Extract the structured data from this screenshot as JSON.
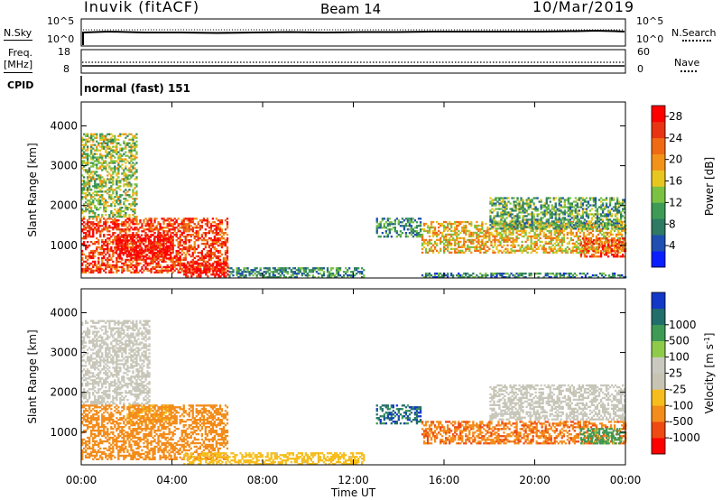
{
  "header": {
    "station": "Inuvik (fitACF)",
    "beam": "Beam 14",
    "date": "10/Mar/2019"
  },
  "top_panels": {
    "nsky_label": "N.Sky",
    "nsky_ticks": [
      "10^5",
      "10^0"
    ],
    "nsearch_label": "N.Search",
    "nsearch_ticks": [
      "10^5",
      "10^0"
    ],
    "freq_label": "Freq.",
    "freq_unit": "[MHz]",
    "freq_ticks": [
      "18",
      "8"
    ],
    "nave_label": "Nave",
    "nave_ticks": [
      "60",
      "0"
    ],
    "cpid_label": "CPID",
    "cpid_value": "normal (fast) 151"
  },
  "colors": {
    "power": [
      "#0a1fff",
      "#1f4fb0",
      "#2e7a63",
      "#3e9a55",
      "#7bc243",
      "#e8c620",
      "#f29218",
      "#f06a14",
      "#e83412",
      "#ff0000"
    ],
    "velocity": [
      "#ff0000",
      "#ef4a12",
      "#f38c1a",
      "#f6bd1c",
      "#c7c4b4",
      "#c9c9c0",
      "#8ecb4a",
      "#3e9a55",
      "#226e6a",
      "#1238c8"
    ]
  },
  "chart_data": [
    {
      "type": "heatmap",
      "name": "power",
      "x_ticks": [
        "00:00",
        "04:00",
        "08:00",
        "12:00",
        "16:00",
        "20:00",
        "00:00"
      ],
      "xlim_hours": [
        0,
        24
      ],
      "ylabel": "Slant Range [km]",
      "y_ticks": [
        1000,
        2000,
        3000,
        4000
      ],
      "ylim": [
        180,
        4600
      ],
      "colorbar_label": "Power [dB]",
      "colorbar_ticks": [
        4,
        8,
        12,
        16,
        20,
        24,
        28
      ],
      "colorbar_range": [
        0,
        30
      ],
      "regions": [
        {
          "t": [
            0.0,
            6.5
          ],
          "r": [
            300,
            1700
          ],
          "v": 25
        },
        {
          "t": [
            1.5,
            4.0
          ],
          "r": [
            650,
            1300
          ],
          "v": 30
        },
        {
          "t": [
            4.5,
            6.5
          ],
          "r": [
            200,
            600
          ],
          "v": 29
        },
        {
          "t": [
            0.0,
            2.5
          ],
          "r": [
            1700,
            3800
          ],
          "v": 14
        },
        {
          "t": [
            6.5,
            12.5
          ],
          "r": [
            180,
            450
          ],
          "v": 9
        },
        {
          "t": [
            15.0,
            24.0
          ],
          "r": [
            180,
            320
          ],
          "v": 8
        },
        {
          "t": [
            15.0,
            24.0
          ],
          "r": [
            800,
            1600
          ],
          "v": 18
        },
        {
          "t": [
            18.0,
            24.0
          ],
          "r": [
            1400,
            2200
          ],
          "v": 11
        },
        {
          "t": [
            22.0,
            24.0
          ],
          "r": [
            700,
            1200
          ],
          "v": 24
        },
        {
          "t": [
            13.0,
            15.0
          ],
          "r": [
            1200,
            1700
          ],
          "v": 9
        }
      ]
    },
    {
      "type": "heatmap",
      "name": "velocity",
      "x_ticks": [
        "00:00",
        "04:00",
        "08:00",
        "12:00",
        "16:00",
        "20:00",
        "00:00"
      ],
      "xlabel": "Time UT",
      "xlim_hours": [
        0,
        24
      ],
      "ylabel": "Slant Range [km]",
      "y_ticks": [
        1000,
        2000,
        3000,
        4000
      ],
      "ylim": [
        180,
        4600
      ],
      "colorbar_label": "Velocity [m s^-1]",
      "colorbar_ticks": [
        -1000,
        -500,
        -100,
        -25,
        25,
        100,
        500,
        1000
      ],
      "regions": [
        {
          "t": [
            0.0,
            6.5
          ],
          "r": [
            300,
            1700
          ],
          "v": -300
        },
        {
          "t": [
            2.0,
            4.0
          ],
          "r": [
            1200,
            1700
          ],
          "v": -150
        },
        {
          "t": [
            0.0,
            3.0
          ],
          "r": [
            1700,
            3800
          ],
          "v": 0
        },
        {
          "t": [
            4.5,
            12.5
          ],
          "r": [
            180,
            500
          ],
          "v": -60
        },
        {
          "t": [
            15.0,
            24.0
          ],
          "r": [
            700,
            1300
          ],
          "v": -400
        },
        {
          "t": [
            18.0,
            24.0
          ],
          "r": [
            1300,
            2200
          ],
          "v": 0
        },
        {
          "t": [
            22.0,
            24.0
          ],
          "r": [
            700,
            1100
          ],
          "v": 200
        },
        {
          "t": [
            13.0,
            15.0
          ],
          "r": [
            1200,
            1700
          ],
          "v": 800
        }
      ]
    }
  ]
}
